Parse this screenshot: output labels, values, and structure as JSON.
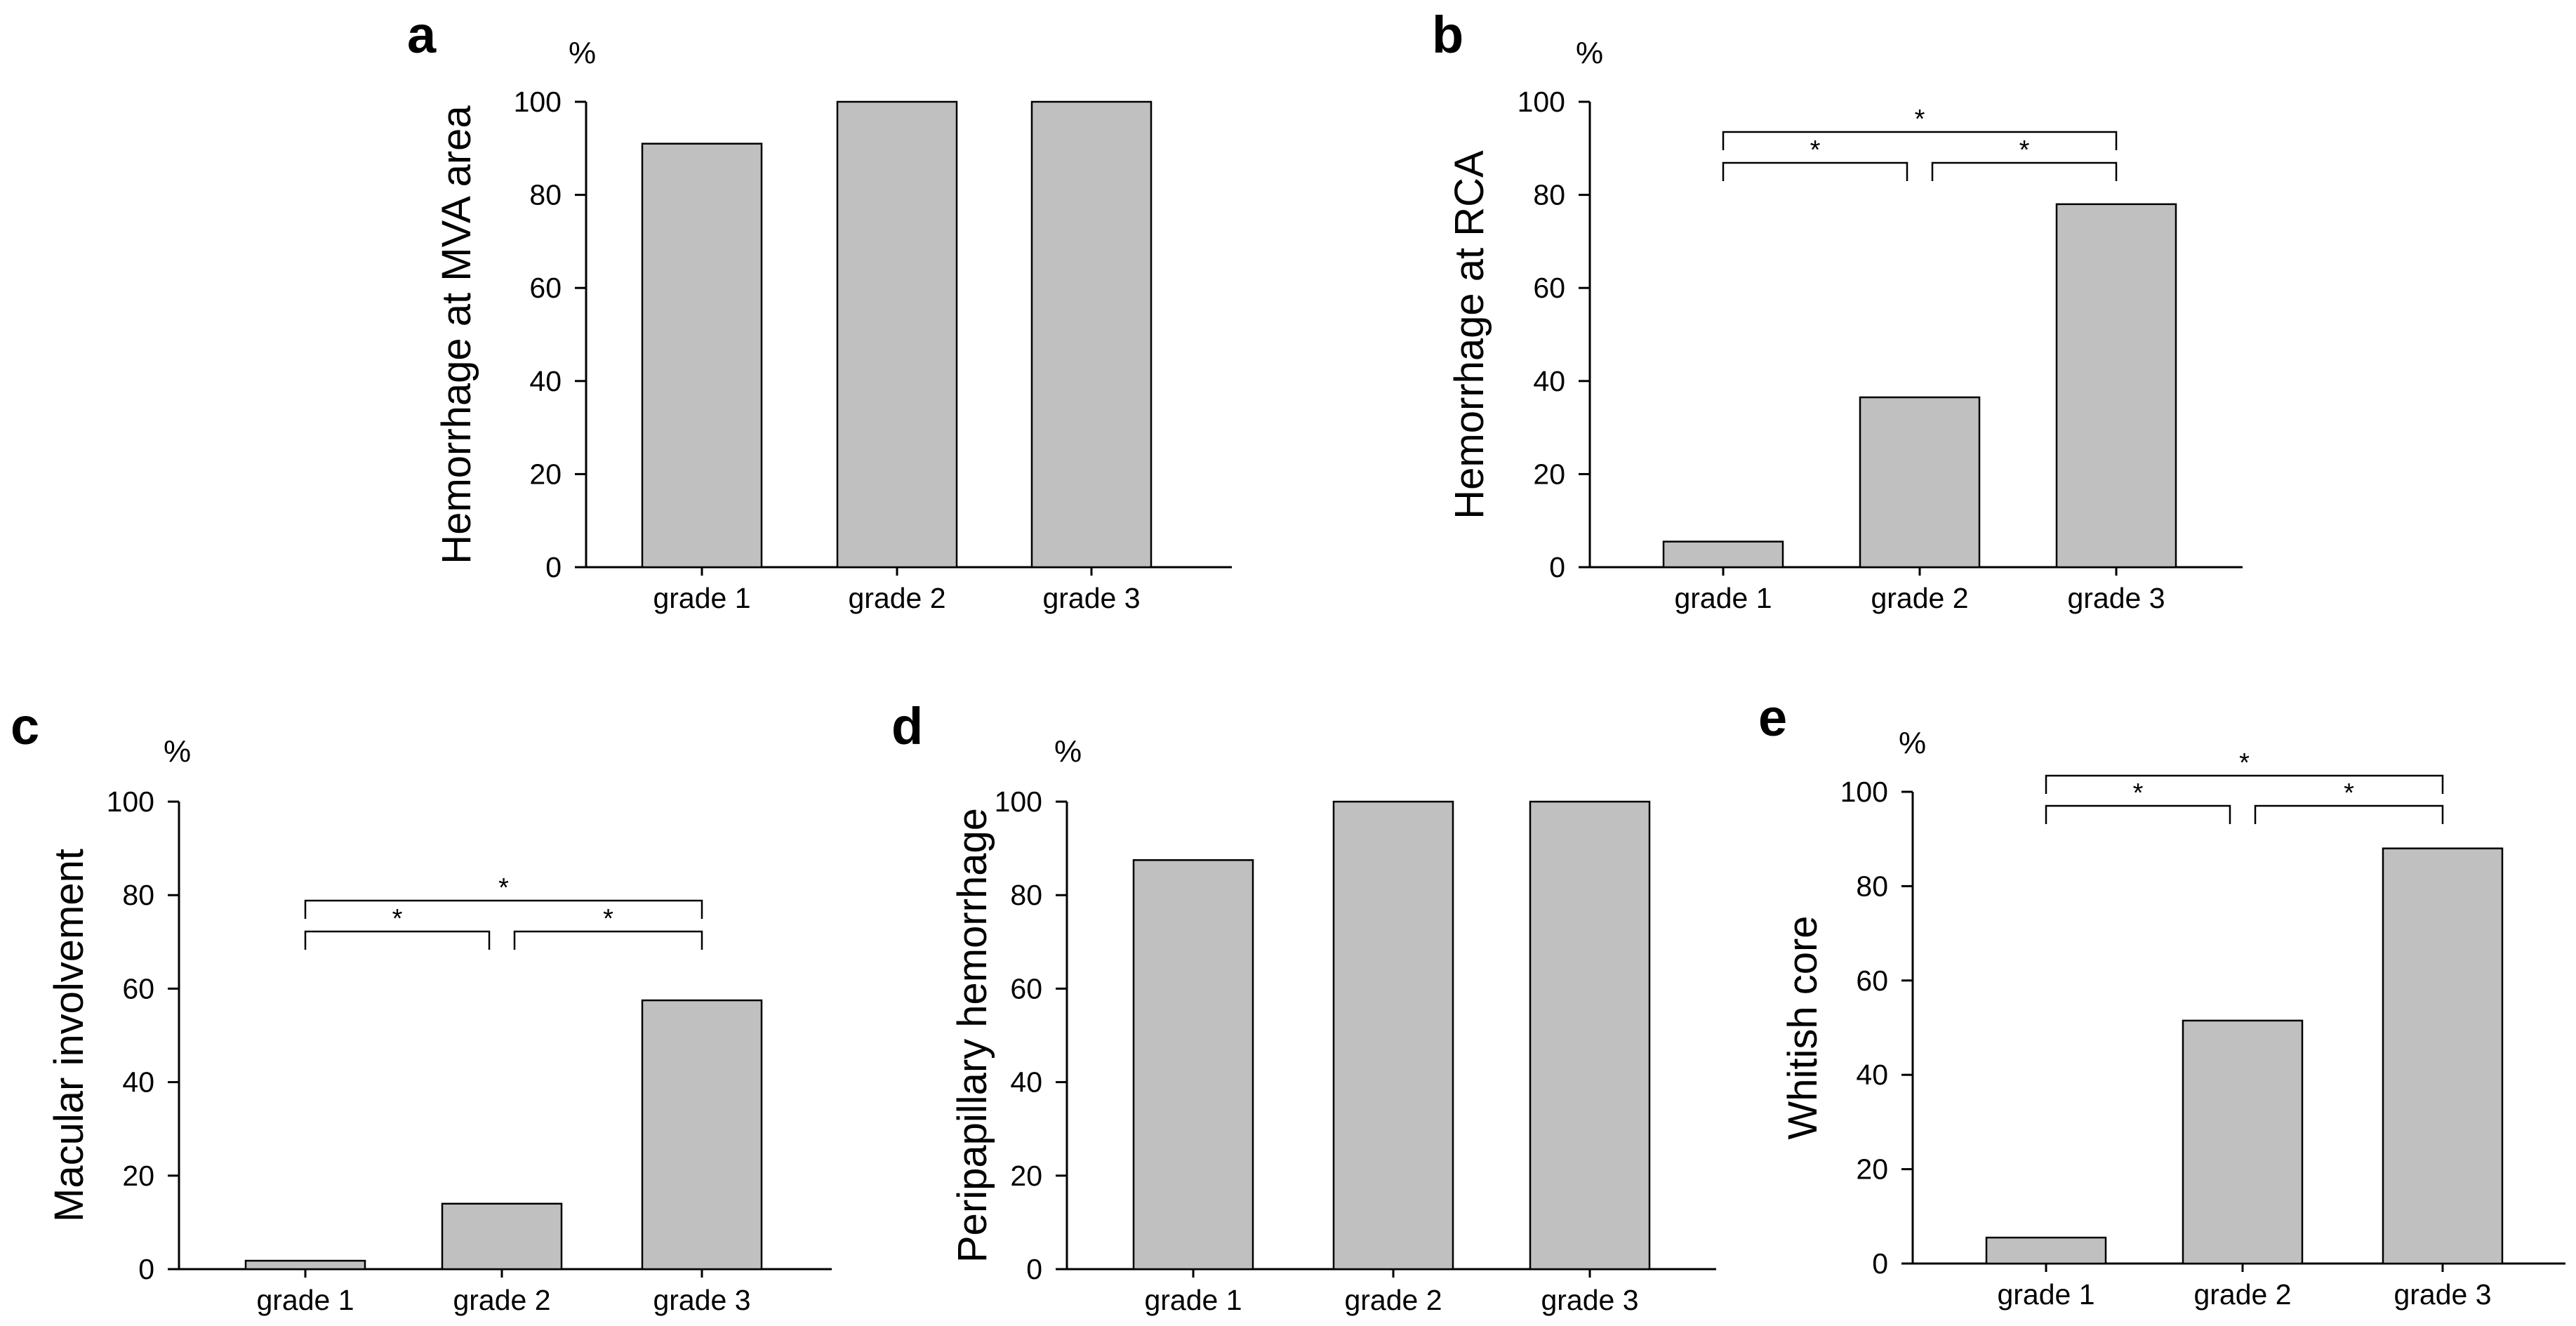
{
  "chart_data": [
    {
      "panel": "a",
      "type": "bar",
      "title": "",
      "unit_label": "%",
      "ylabel": "Hemorrhage at MVA area",
      "xlabel": "",
      "categories": [
        "grade 1",
        "grade 2",
        "grade 3"
      ],
      "values": [
        91,
        100,
        100
      ],
      "ylim": [
        0,
        100
      ],
      "yticks": [
        0,
        20,
        40,
        60,
        80,
        100
      ],
      "significance": []
    },
    {
      "panel": "b",
      "type": "bar",
      "title": "",
      "unit_label": "%",
      "ylabel": "Hemorrhage at RCA",
      "xlabel": "",
      "categories": [
        "grade 1",
        "grade 2",
        "grade 3"
      ],
      "values": [
        5.5,
        36.5,
        78
      ],
      "ylim": [
        0,
        100
      ],
      "yticks": [
        0,
        20,
        40,
        60,
        80,
        100
      ],
      "significance": [
        {
          "from": 0,
          "to": 1,
          "label": "*"
        },
        {
          "from": 1,
          "to": 2,
          "label": "*"
        },
        {
          "from": 0,
          "to": 2,
          "label": "*"
        }
      ]
    },
    {
      "panel": "c",
      "type": "bar",
      "title": "",
      "unit_label": "%",
      "ylabel": "Macular involvement",
      "xlabel": "",
      "categories": [
        "grade 1",
        "grade 2",
        "grade 3"
      ],
      "values": [
        1.8,
        14,
        57.5
      ],
      "ylim": [
        0,
        100
      ],
      "yticks": [
        0,
        20,
        40,
        60,
        80,
        100
      ],
      "significance": [
        {
          "from": 0,
          "to": 1,
          "label": "*"
        },
        {
          "from": 1,
          "to": 2,
          "label": "*"
        },
        {
          "from": 0,
          "to": 2,
          "label": "*"
        }
      ]
    },
    {
      "panel": "d",
      "type": "bar",
      "title": "",
      "unit_label": "%",
      "ylabel": "Peripapillary hemorrhage",
      "xlabel": "",
      "categories": [
        "grade 1",
        "grade 2",
        "grade 3"
      ],
      "values": [
        87.5,
        100,
        100
      ],
      "ylim": [
        0,
        100
      ],
      "yticks": [
        0,
        20,
        40,
        60,
        80,
        100
      ],
      "significance": []
    },
    {
      "panel": "e",
      "type": "bar",
      "title": "",
      "unit_label": "%",
      "ylabel": "Whitish core",
      "xlabel": "",
      "categories": [
        "grade 1",
        "grade 2",
        "grade 3"
      ],
      "values": [
        5.5,
        51.5,
        88
      ],
      "ylim": [
        0,
        100
      ],
      "yticks": [
        0,
        20,
        40,
        60,
        80,
        100
      ],
      "significance": [
        {
          "from": 0,
          "to": 1,
          "label": "*"
        },
        {
          "from": 1,
          "to": 2,
          "label": "*"
        },
        {
          "from": 0,
          "to": 2,
          "label": "*"
        }
      ]
    }
  ]
}
